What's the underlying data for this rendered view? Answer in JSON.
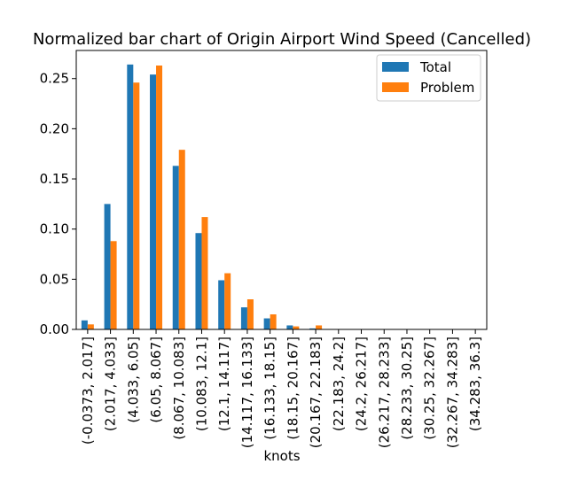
{
  "chart_data": {
    "type": "bar",
    "title": "Normalized bar chart of Origin Airport Wind Speed (Cancelled)",
    "xlabel": "knots",
    "ylabel": "",
    "ylim": [
      0,
      0.278
    ],
    "yticks": [
      "0.00",
      "0.05",
      "0.10",
      "0.15",
      "0.20",
      "0.25"
    ],
    "ytick_values": [
      0,
      0.05,
      0.1,
      0.15,
      0.2,
      0.25
    ],
    "legend_position": "top-right",
    "grid": false,
    "categories": [
      "(-0.0373, 2.017]",
      "(2.017, 4.033]",
      "(4.033, 6.05]",
      "(6.05, 8.067]",
      "(8.067, 10.083]",
      "(10.083, 12.1]",
      "(12.1, 14.117]",
      "(14.117, 16.133]",
      "(16.133, 18.15]",
      "(18.15, 20.167]",
      "(20.167, 22.183]",
      "(22.183, 24.2]",
      "(24.2, 26.217]",
      "(26.217, 28.233]",
      "(28.233, 30.25]",
      "(30.25, 32.267]",
      "(32.267, 34.283]",
      "(34.283, 36.3]"
    ],
    "series": [
      {
        "name": "Total",
        "color": "#1f77b4",
        "values": [
          0.009,
          0.125,
          0.264,
          0.254,
          0.163,
          0.096,
          0.049,
          0.022,
          0.011,
          0.004,
          0.001,
          0.0003,
          0.0001,
          0,
          0,
          0,
          0,
          0
        ]
      },
      {
        "name": "Problem",
        "color": "#ff7f0e",
        "values": [
          0.005,
          0.088,
          0.246,
          0.263,
          0.179,
          0.112,
          0.056,
          0.03,
          0.015,
          0.003,
          0.004,
          0,
          0,
          0,
          0,
          0,
          0,
          0
        ]
      }
    ]
  }
}
